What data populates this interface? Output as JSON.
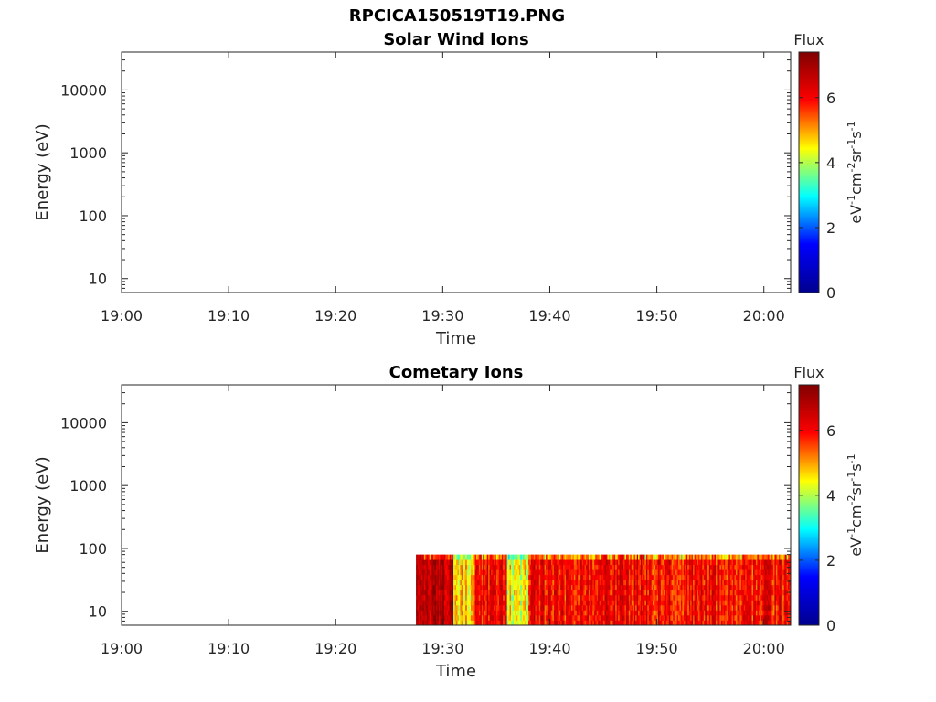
{
  "figure": {
    "title": "RPCICA150519T19.PNG"
  },
  "colormap": {
    "name": "jet",
    "stops": [
      "#00008f",
      "#0000ff",
      "#00ffff",
      "#ffff00",
      "#ff0000",
      "#800000"
    ]
  },
  "chart_data": [
    {
      "type": "heatmap",
      "title": "Solar Wind Ions",
      "xlabel": "Time",
      "ylabel": "Energy (eV)",
      "x_tick_labels": [
        "19:00",
        "19:10",
        "19:20",
        "19:30",
        "19:40",
        "19:50",
        "20:00"
      ],
      "x_ticks_minutes": [
        0,
        10,
        20,
        30,
        40,
        50,
        60
      ],
      "xlim_minutes": [
        0,
        62.5
      ],
      "y_scale": "log",
      "y_tick_labels": [
        "10",
        "100",
        "1000",
        "10000"
      ],
      "y_ticks": [
        10,
        100,
        1000,
        10000
      ],
      "ylim": [
        6,
        40000
      ],
      "colorbar": {
        "label": "Flux",
        "units_base": "eV",
        "tick_labels": [
          "0",
          "2",
          "4",
          "6"
        ],
        "ticks": [
          0,
          2,
          4,
          6
        ],
        "clim": [
          0,
          7.4
        ]
      },
      "data_present": false
    },
    {
      "type": "heatmap",
      "title": "Cometary Ions",
      "xlabel": "Time",
      "ylabel": "Energy (eV)",
      "x_tick_labels": [
        "19:00",
        "19:10",
        "19:20",
        "19:30",
        "19:40",
        "19:50",
        "20:00"
      ],
      "x_ticks_minutes": [
        0,
        10,
        20,
        30,
        40,
        50,
        60
      ],
      "xlim_minutes": [
        0,
        62.5
      ],
      "y_scale": "log",
      "y_tick_labels": [
        "10",
        "100",
        "1000",
        "10000"
      ],
      "y_ticks": [
        10,
        100,
        1000,
        10000
      ],
      "ylim": [
        6,
        40000
      ],
      "colorbar": {
        "label": "Flux",
        "units_base": "eV",
        "tick_labels": [
          "0",
          "2",
          "4",
          "6"
        ],
        "ticks": [
          0,
          2,
          4,
          6
        ],
        "clim": [
          0,
          7.4
        ]
      },
      "data_present": true,
      "data_time_range_minutes": [
        27.5,
        62.5
      ],
      "data_energy_range_eV": [
        6,
        80
      ],
      "flux_typical_range": [
        4.5,
        7.2
      ],
      "flux_by_segment": [
        {
          "minutes": [
            27.5,
            31
          ],
          "flux": 6.8
        },
        {
          "minutes": [
            31,
            33
          ],
          "flux": 4.6
        },
        {
          "minutes": [
            33,
            36
          ],
          "flux": 6.2
        },
        {
          "minutes": [
            36,
            38
          ],
          "flux": 4.4
        },
        {
          "minutes": [
            38,
            62.5
          ],
          "flux": 6.0
        }
      ]
    }
  ]
}
